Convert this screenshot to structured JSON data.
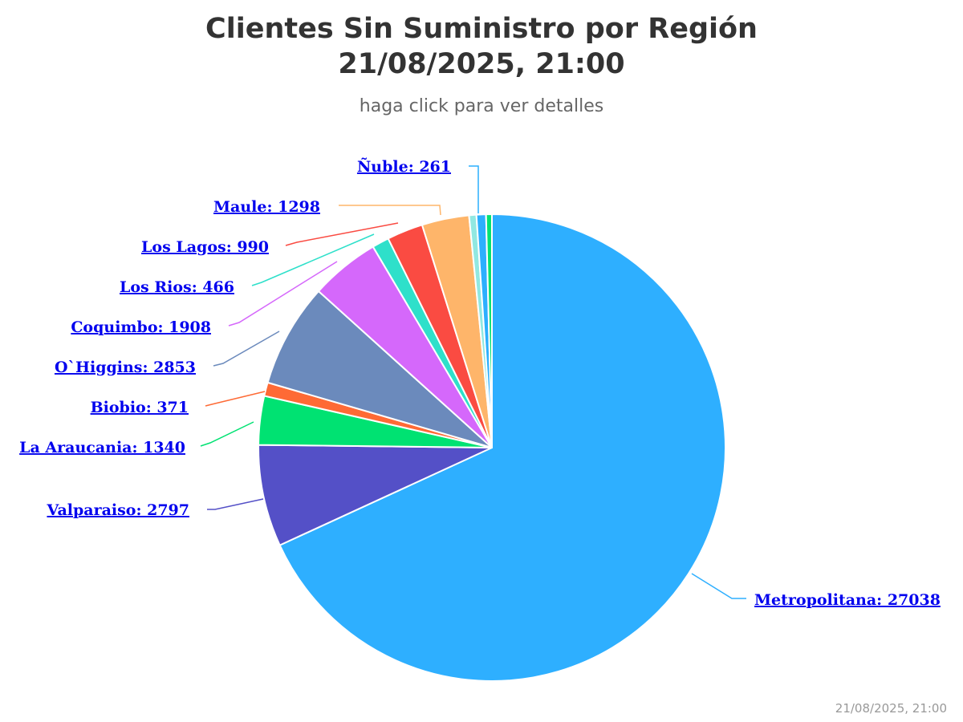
{
  "title_line1": "Clientes Sin Suministro por Región",
  "title_line2": "21/08/2025, 21:00",
  "subtitle": "haga click para ver detalles",
  "footer": "21/08/2025, 21:00",
  "chart_data": {
    "type": "pie",
    "title": "Clientes Sin Suministro por Región 21/08/2025, 21:00",
    "subtitle": "haga click para ver detalles",
    "slices": [
      {
        "name": "Metropolitana",
        "value": 27038,
        "color": "#2eafff",
        "label": "Metropolitana: 27038"
      },
      {
        "name": "Valparaiso",
        "value": 2797,
        "color": "#5450c7",
        "label": "Valparaiso: 2797"
      },
      {
        "name": "La Araucania",
        "value": 1340,
        "color": "#00e272",
        "label": "La Araucania: 1340"
      },
      {
        "name": "Biobio",
        "value": 371,
        "color": "#fe6a35",
        "label": "Biobio: 371"
      },
      {
        "name": "O`Higgins",
        "value": 2853,
        "color": "#6b8abc",
        "label": "O`Higgins: 2853"
      },
      {
        "name": "Coquimbo",
        "value": 1908,
        "color": "#d568fb",
        "label": "Coquimbo: 1908"
      },
      {
        "name": "Los Rios",
        "value": 466,
        "color": "#2ee0ca",
        "label": "Los Rios: 466"
      },
      {
        "name": "Los Lagos",
        "value": 990,
        "color": "#fa4b42",
        "label": "Los Lagos: 990"
      },
      {
        "name": "Maule",
        "value": 1298,
        "color": "#feb56a",
        "label": "Maule: 1298"
      },
      {
        "name": "",
        "value": 200,
        "color": "#91e8e1",
        "label": ""
      },
      {
        "name": "Ñuble",
        "value": 261,
        "color": "#2caffe",
        "label": "Ñuble: 261"
      },
      {
        "name": "",
        "value": 160,
        "color": "#00e272",
        "label": ""
      }
    ]
  }
}
